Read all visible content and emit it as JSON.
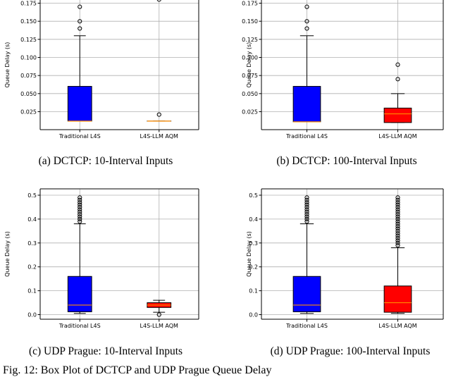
{
  "chart_data": [
    {
      "type": "box",
      "caption": "(a) DCTCP: 10-Interval Inputs",
      "ylabel": "Queue Delay (s)",
      "yticks": [
        0.025,
        0.05,
        0.075,
        0.1,
        0.125,
        0.15,
        0.175
      ],
      "ytick_labels": [
        "0.025",
        "0.050",
        "0.075",
        "0.100",
        "0.125",
        "0.150",
        "0.175"
      ],
      "grid": true,
      "categories": [
        "Traditional L4S",
        "L4S-LLM AQM"
      ],
      "boxes": [
        {
          "name": "Traditional L4S",
          "color": "#0000ff",
          "q1": 0.012,
          "median": 0.012,
          "q3": 0.06,
          "whisker_low": 0.012,
          "whisker_high": 0.13,
          "outliers": [
            0.14,
            0.15,
            0.17
          ]
        },
        {
          "name": "L4S-LLM AQM",
          "color": "#0000ff",
          "q1": 0.012,
          "median": 0.012,
          "q3": 0.012,
          "whisker_low": 0.012,
          "whisker_high": 0.012,
          "outliers": [
            0.021,
            0.18
          ]
        }
      ]
    },
    {
      "type": "box",
      "caption": "(b) DCTCP: 100-Interval Inputs",
      "ylabel": "Queue Delay (s)",
      "yticks": [
        0.025,
        0.05,
        0.075,
        0.1,
        0.125,
        0.15,
        0.175
      ],
      "ytick_labels": [
        "0.025",
        "0.050",
        "0.075",
        "0.100",
        "0.125",
        "0.150",
        "0.175"
      ],
      "grid": true,
      "categories": [
        "Traditional L4S",
        "L4S-LLM AQM"
      ],
      "boxes": [
        {
          "name": "Traditional L4S",
          "color": "#0000ff",
          "q1": 0.011,
          "median": 0.011,
          "q3": 0.06,
          "whisker_low": 0.011,
          "whisker_high": 0.13,
          "outliers": [
            0.14,
            0.15,
            0.17
          ]
        },
        {
          "name": "L4S-LLM AQM",
          "color": "#ff0000",
          "q1": 0.01,
          "median": 0.022,
          "q3": 0.03,
          "whisker_low": 0.01,
          "whisker_high": 0.05,
          "outliers": [
            0.07,
            0.09
          ]
        }
      ]
    },
    {
      "type": "box",
      "caption": "(c) UDP Prague: 10-Interval Inputs",
      "ylabel": "Queue Delay (s)",
      "yticks": [
        0.0,
        0.1,
        0.2,
        0.3,
        0.4,
        0.5
      ],
      "ytick_labels": [
        "0.0",
        "0.1",
        "0.2",
        "0.3",
        "0.4",
        "0.5"
      ],
      "grid": true,
      "categories": [
        "Traditional L4S",
        "L4S-LLM AQM"
      ],
      "boxes": [
        {
          "name": "Traditional L4S",
          "color": "#0000ff",
          "q1": 0.012,
          "median": 0.04,
          "q3": 0.16,
          "whisker_low": 0.005,
          "whisker_high": 0.38,
          "outliers": [
            0.39,
            0.4,
            0.41,
            0.42,
            0.43,
            0.44,
            0.45,
            0.46,
            0.47,
            0.48,
            0.49
          ]
        },
        {
          "name": "L4S-LLM AQM",
          "color": "#ff0000",
          "q1": 0.03,
          "median": 0.04,
          "q3": 0.05,
          "whisker_low": 0.01,
          "whisker_high": 0.06,
          "outliers": [
            0.0
          ]
        }
      ]
    },
    {
      "type": "box",
      "caption": "(d) UDP Prague: 100-Interval Inputs",
      "ylabel": "Queue Delay (s)",
      "yticks": [
        0.0,
        0.1,
        0.2,
        0.3,
        0.4,
        0.5
      ],
      "ytick_labels": [
        "0.0",
        "0.1",
        "0.2",
        "0.3",
        "0.4",
        "0.5"
      ],
      "grid": true,
      "categories": [
        "Traditional L4S",
        "L4S-LLM AQM"
      ],
      "boxes": [
        {
          "name": "Traditional L4S",
          "color": "#0000ff",
          "q1": 0.012,
          "median": 0.04,
          "q3": 0.16,
          "whisker_low": 0.005,
          "whisker_high": 0.38,
          "outliers": [
            0.39,
            0.4,
            0.41,
            0.42,
            0.43,
            0.44,
            0.45,
            0.46,
            0.47,
            0.48,
            0.49
          ]
        },
        {
          "name": "L4S-LLM AQM",
          "color": "#ff0000",
          "q1": 0.01,
          "median": 0.05,
          "q3": 0.12,
          "whisker_low": 0.005,
          "whisker_high": 0.28,
          "outliers": [
            0.29,
            0.3,
            0.31,
            0.32,
            0.33,
            0.34,
            0.35,
            0.36,
            0.37,
            0.38,
            0.39,
            0.4,
            0.41,
            0.42,
            0.43,
            0.44,
            0.45,
            0.46,
            0.47,
            0.48,
            0.49
          ]
        }
      ]
    }
  ],
  "figure_caption": "Fig. 12: Box Plot of DCTCP and UDP Prague Queue Delay",
  "colors": {
    "median": "#ff8c00",
    "axis": "#000000",
    "grid": "#b0b0b0"
  }
}
